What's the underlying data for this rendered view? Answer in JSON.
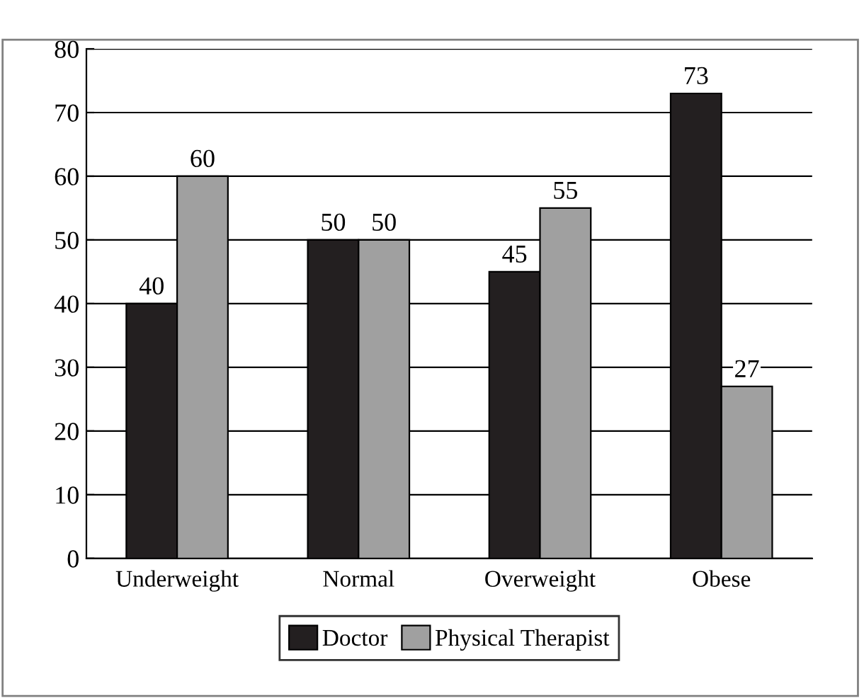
{
  "chart_data": {
    "type": "bar",
    "categories": [
      "Underweight",
      "Normal",
      "Overweight",
      "Obese"
    ],
    "series": [
      {
        "name": "Doctor",
        "color": "#231f20",
        "values": [
          40,
          50,
          45,
          73
        ]
      },
      {
        "name": "Physical Therapist",
        "color": "#a0a0a0",
        "values": [
          60,
          50,
          55,
          27
        ]
      }
    ],
    "ylim": [
      0,
      80
    ],
    "yticks": [
      0,
      10,
      20,
      30,
      40,
      50,
      60,
      70,
      80
    ],
    "grid": "y",
    "legend": "bottom",
    "data_labels": true
  }
}
